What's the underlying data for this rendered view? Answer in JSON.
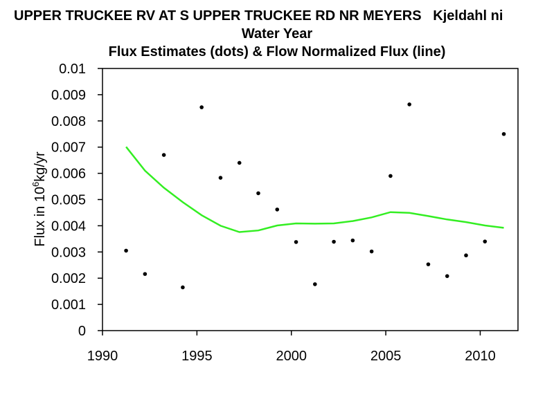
{
  "chart_data": {
    "type": "scatter",
    "title_lines": [
      "UPPER TRUCKEE RV AT S UPPER TRUCKEE RD NR MEYERS   Kjeldahl ni",
      "Water Year",
      "Flux Estimates (dots) & Flow Normalized Flux (line)"
    ],
    "ylabel_parts": [
      "Flux in 10",
      "6",
      "kg/yr"
    ],
    "xlim": [
      1990,
      2012
    ],
    "ylim": [
      0,
      0.01
    ],
    "xticks": [
      "1990",
      "1995",
      "2000",
      "2005",
      "2010"
    ],
    "yticks": [
      "0",
      "0.001",
      "0.002",
      "0.003",
      "0.004",
      "0.005",
      "0.006",
      "0.007",
      "0.008",
      "0.009",
      "0.01"
    ],
    "grid": false,
    "points": {
      "name": "Flux Estimates",
      "color": "#000000",
      "x": [
        1991.25,
        1992.25,
        1993.25,
        1994.25,
        1995.25,
        1996.25,
        1997.25,
        1998.25,
        1999.25,
        2000.25,
        2001.25,
        2002.25,
        2003.25,
        2004.25,
        2005.25,
        2006.25,
        2007.25,
        2008.25,
        2009.25,
        2010.25,
        2011.25
      ],
      "y": [
        0.00305,
        0.00216,
        0.0067,
        0.00165,
        0.00852,
        0.00583,
        0.0064,
        0.00524,
        0.00462,
        0.00338,
        0.00177,
        0.00339,
        0.00344,
        0.00302,
        0.0059,
        0.00863,
        0.00253,
        0.00208,
        0.00287,
        0.0034,
        0.0075
      ]
    },
    "line": {
      "name": "Flow Normalized Flux",
      "color": "#33ee22",
      "x": [
        1991.25,
        1992.25,
        1993.25,
        1994.25,
        1995.25,
        1996.25,
        1997.25,
        1998.25,
        1999.25,
        2000.25,
        2001.25,
        2002.25,
        2003.25,
        2004.25,
        2005.25,
        2006.25,
        2007.25,
        2008.25,
        2009.25,
        2010.25,
        2011.25
      ],
      "y": [
        0.00701,
        0.0061,
        0.00545,
        0.0049,
        0.0044,
        0.004,
        0.00376,
        0.00382,
        0.00401,
        0.00409,
        0.00408,
        0.00409,
        0.00418,
        0.00432,
        0.00452,
        0.00449,
        0.00437,
        0.00424,
        0.00414,
        0.00401,
        0.00392
      ]
    }
  }
}
